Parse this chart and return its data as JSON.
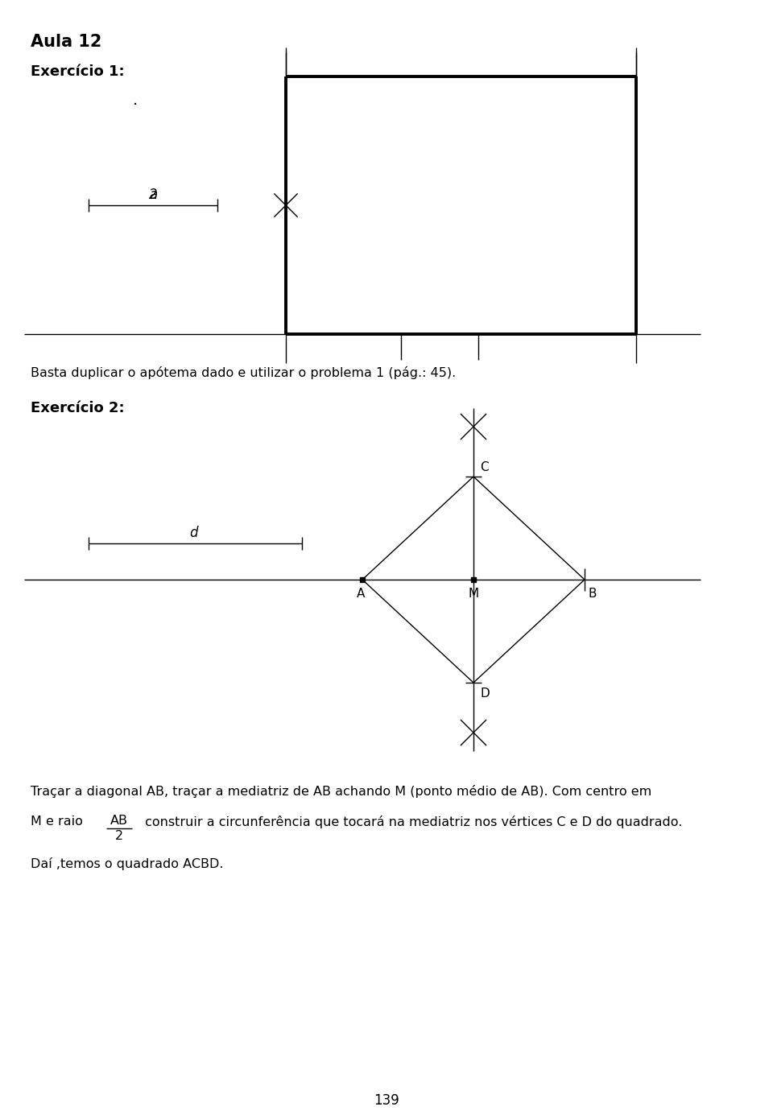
{
  "title": "Aula 12",
  "ex1_label": "Exercício 1:",
  "ex2_label": "Exercício 2:",
  "text1": "Basta duplicar o apótema dado e utilizar o problema 1 (pág.: 45).",
  "text2a": "Traçar a diagonal AB, traçar a mediatriz de AB achando M (ponto médio de AB). Com centro em",
  "text2b": "M e raio ",
  "text2c": " construir a circunferência que tocará na mediatriz nos vértices C e D do quadrado.",
  "text2d": "Daí ,temos o quadrado ACBD.",
  "fraction_num": "AB",
  "fraction_den": "2",
  "page_number": "139",
  "bg_color": "#ffffff",
  "line_color": "#000000",
  "bold_lw": 2.8,
  "thin_lw": 1.0
}
